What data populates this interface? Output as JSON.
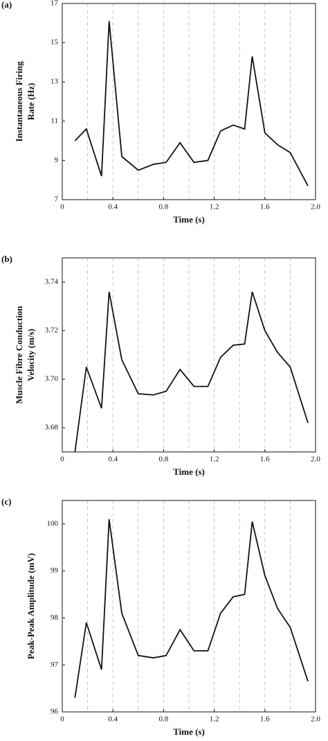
{
  "chart_data": [
    {
      "type": "line",
      "panel_label": "(a)",
      "xlabel": "Time (s)",
      "ylabel": [
        "Instantaneous Firing",
        "Rate (Hz)"
      ],
      "x": [
        0.1,
        0.19,
        0.31,
        0.37,
        0.47,
        0.6,
        0.72,
        0.82,
        0.93,
        1.04,
        1.15,
        1.25,
        1.35,
        1.44,
        1.5,
        1.6,
        1.7,
        1.8,
        1.94
      ],
      "values": [
        10.0,
        10.6,
        8.2,
        16.1,
        9.2,
        8.5,
        8.8,
        8.9,
        9.9,
        8.9,
        9.0,
        10.5,
        10.8,
        10.6,
        14.3,
        10.4,
        9.8,
        9.4,
        7.7
      ],
      "color": "#111111",
      "xlim": [
        0,
        2
      ],
      "ylim": [
        7,
        17
      ],
      "xticks": [
        0,
        0.4,
        0.8,
        1.2,
        1.6,
        {
          "value": 2,
          "label": "2.0"
        }
      ],
      "yticks": [
        7,
        9,
        11,
        13,
        15,
        17
      ],
      "xgrid": [
        0.2,
        0.4,
        0.6,
        0.8,
        1,
        1.2,
        1.4,
        1.6,
        1.8
      ]
    },
    {
      "type": "line",
      "panel_label": "(b)",
      "xlabel": "Time (s)",
      "ylabel": [
        "Muscle Fibre Conduction",
        "Velocity (m/s)"
      ],
      "x": [
        0.1,
        0.19,
        0.31,
        0.37,
        0.47,
        0.6,
        0.72,
        0.82,
        0.93,
        1.04,
        1.15,
        1.25,
        1.35,
        1.44,
        1.5,
        1.6,
        1.7,
        1.8,
        1.94
      ],
      "values": [
        3.67,
        3.705,
        3.688,
        3.736,
        3.708,
        3.694,
        3.6935,
        3.695,
        3.704,
        3.697,
        3.697,
        3.709,
        3.714,
        3.7145,
        3.736,
        3.72,
        3.711,
        3.705,
        3.682
      ],
      "color": "#111111",
      "xlim": [
        0,
        2
      ],
      "ylim": [
        3.67,
        3.75
      ],
      "xticks": [
        0,
        0.4,
        0.8,
        1.2,
        1.6,
        {
          "value": 2,
          "label": "2.0"
        }
      ],
      "yticks": [
        3.68,
        {
          "value": 3.7,
          "label": "3.70"
        },
        3.72,
        3.74
      ],
      "xgrid": [
        0.2,
        0.4,
        0.6,
        0.8,
        1,
        1.2,
        1.4,
        1.6,
        1.8
      ]
    },
    {
      "type": "line",
      "panel_label": "(c)",
      "xlabel": "Time (s)",
      "ylabel": [
        "Peak-Peak Amplitude (mV)"
      ],
      "x": [
        0.1,
        0.19,
        0.31,
        0.37,
        0.47,
        0.6,
        0.72,
        0.82,
        0.93,
        1.04,
        1.15,
        1.25,
        1.35,
        1.44,
        1.5,
        1.6,
        1.7,
        1.8,
        1.94
      ],
      "values": [
        96.3,
        97.9,
        96.9,
        100.1,
        98.1,
        97.2,
        97.15,
        97.2,
        97.75,
        97.3,
        97.3,
        98.1,
        98.45,
        98.5,
        100.05,
        98.9,
        98.2,
        97.8,
        96.65
      ],
      "color": "#111111",
      "xlim": [
        0,
        2
      ],
      "ylim": [
        96,
        100.5
      ],
      "xticks": [
        0,
        0.4,
        0.8,
        1.2,
        1.6,
        {
          "value": 2,
          "label": "2.0"
        }
      ],
      "yticks": [
        96,
        97,
        98,
        99,
        100
      ],
      "xgrid": [
        0.2,
        0.4,
        0.6,
        0.8,
        1,
        1.2,
        1.4,
        1.6,
        1.8
      ]
    }
  ]
}
